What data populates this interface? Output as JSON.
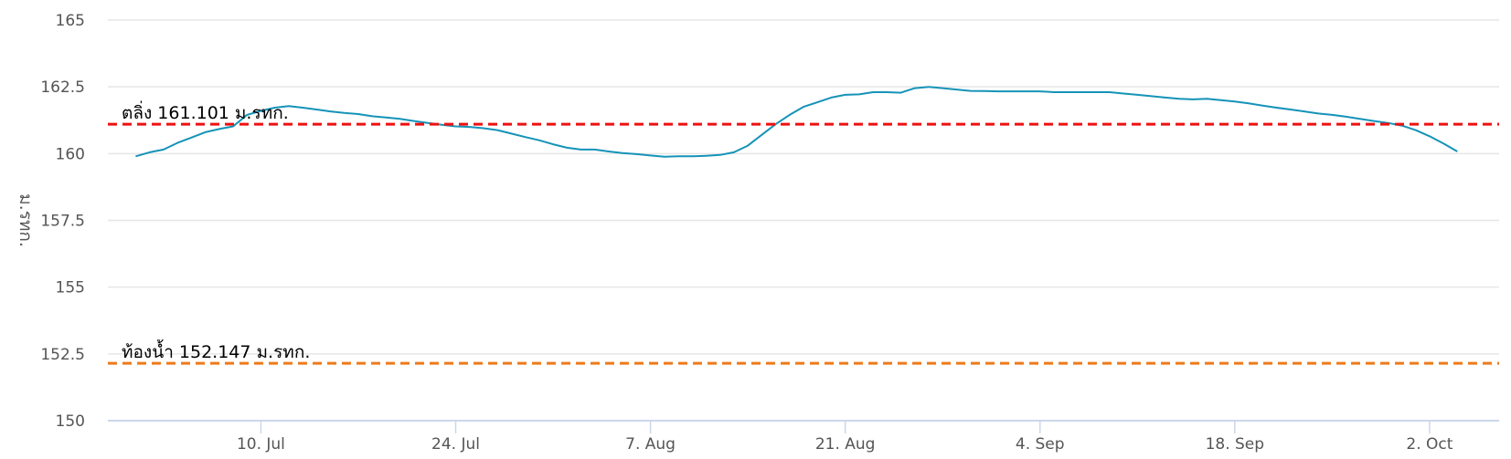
{
  "chart_data": {
    "type": "line",
    "title": "",
    "xlabel": "",
    "ylabel": "ม.รทก.",
    "ylim": [
      150,
      165
    ],
    "y_ticks": [
      "150",
      "152.5",
      "155",
      "157.5",
      "160",
      "162.5",
      "165"
    ],
    "y_tick_values": [
      150,
      152.5,
      155,
      157.5,
      160,
      162.5,
      165
    ],
    "x_range": [
      "2020-06-29",
      "2020-10-07"
    ],
    "x_ticks": [
      {
        "date": "2020-07-10",
        "label": "10. Jul"
      },
      {
        "date": "2020-07-24",
        "label": "24. Jul"
      },
      {
        "date": "2020-08-07",
        "label": "7. Aug"
      },
      {
        "date": "2020-08-21",
        "label": "21. Aug"
      },
      {
        "date": "2020-09-04",
        "label": "4. Sep"
      },
      {
        "date": "2020-09-18",
        "label": "18. Sep"
      },
      {
        "date": "2020-10-02",
        "label": "2. Oct"
      }
    ],
    "grid": true,
    "legend": "none",
    "reference_lines": [
      {
        "value": 161.101,
        "label": "ตลิ่ง 161.101 ม.รทก.",
        "color": "#ee1111",
        "style": "dashed"
      },
      {
        "value": 152.147,
        "label": "ท้องน้ำ 152.147 ม.รทก.",
        "color": "#ee7a1a",
        "style": "dashed"
      }
    ],
    "series": [
      {
        "color": "#1593b8",
        "points": [
          [
            "2020-07-01",
            159.9
          ],
          [
            "2020-07-02",
            160.05
          ],
          [
            "2020-07-03",
            160.15
          ],
          [
            "2020-07-04",
            160.4
          ],
          [
            "2020-07-05",
            160.6
          ],
          [
            "2020-07-06",
            160.8
          ],
          [
            "2020-07-07",
            160.92
          ],
          [
            "2020-07-08",
            161.02
          ],
          [
            "2020-07-09",
            161.45
          ],
          [
            "2020-07-10",
            161.6
          ],
          [
            "2020-07-11",
            161.72
          ],
          [
            "2020-07-12",
            161.78
          ],
          [
            "2020-07-13",
            161.72
          ],
          [
            "2020-07-14",
            161.65
          ],
          [
            "2020-07-15",
            161.58
          ],
          [
            "2020-07-16",
            161.52
          ],
          [
            "2020-07-17",
            161.48
          ],
          [
            "2020-07-18",
            161.4
          ],
          [
            "2020-07-19",
            161.35
          ],
          [
            "2020-07-20",
            161.3
          ],
          [
            "2020-07-21",
            161.22
          ],
          [
            "2020-07-22",
            161.15
          ],
          [
            "2020-07-23",
            161.08
          ],
          [
            "2020-07-24",
            161.02
          ],
          [
            "2020-07-25",
            161.0
          ],
          [
            "2020-07-26",
            160.95
          ],
          [
            "2020-07-27",
            160.88
          ],
          [
            "2020-07-28",
            160.75
          ],
          [
            "2020-07-29",
            160.62
          ],
          [
            "2020-07-30",
            160.5
          ],
          [
            "2020-07-31",
            160.35
          ],
          [
            "2020-08-01",
            160.22
          ],
          [
            "2020-08-02",
            160.15
          ],
          [
            "2020-08-03",
            160.15
          ],
          [
            "2020-08-04",
            160.08
          ],
          [
            "2020-08-05",
            160.02
          ],
          [
            "2020-08-06",
            159.98
          ],
          [
            "2020-08-07",
            159.93
          ],
          [
            "2020-08-08",
            159.88
          ],
          [
            "2020-08-09",
            159.9
          ],
          [
            "2020-08-10",
            159.9
          ],
          [
            "2020-08-11",
            159.92
          ],
          [
            "2020-08-12",
            159.95
          ],
          [
            "2020-08-13",
            160.05
          ],
          [
            "2020-08-14",
            160.3
          ],
          [
            "2020-08-15",
            160.7
          ],
          [
            "2020-08-16",
            161.1
          ],
          [
            "2020-08-17",
            161.45
          ],
          [
            "2020-08-18",
            161.75
          ],
          [
            "2020-08-19",
            161.92
          ],
          [
            "2020-08-20",
            162.1
          ],
          [
            "2020-08-21",
            162.2
          ],
          [
            "2020-08-22",
            162.22
          ],
          [
            "2020-08-23",
            162.3
          ],
          [
            "2020-08-24",
            162.3
          ],
          [
            "2020-08-25",
            162.28
          ],
          [
            "2020-08-26",
            162.45
          ],
          [
            "2020-08-27",
            162.5
          ],
          [
            "2020-08-28",
            162.45
          ],
          [
            "2020-08-29",
            162.4
          ],
          [
            "2020-08-30",
            162.35
          ],
          [
            "2020-08-31",
            162.34
          ],
          [
            "2020-09-01",
            162.33
          ],
          [
            "2020-09-02",
            162.33
          ],
          [
            "2020-09-03",
            162.33
          ],
          [
            "2020-09-04",
            162.33
          ],
          [
            "2020-09-05",
            162.3
          ],
          [
            "2020-09-06",
            162.3
          ],
          [
            "2020-09-07",
            162.3
          ],
          [
            "2020-09-08",
            162.3
          ],
          [
            "2020-09-09",
            162.3
          ],
          [
            "2020-09-10",
            162.25
          ],
          [
            "2020-09-11",
            162.2
          ],
          [
            "2020-09-12",
            162.15
          ],
          [
            "2020-09-13",
            162.1
          ],
          [
            "2020-09-14",
            162.05
          ],
          [
            "2020-09-15",
            162.03
          ],
          [
            "2020-09-16",
            162.05
          ],
          [
            "2020-09-17",
            162.0
          ],
          [
            "2020-09-18",
            161.95
          ],
          [
            "2020-09-19",
            161.88
          ],
          [
            "2020-09-20",
            161.8
          ],
          [
            "2020-09-21",
            161.72
          ],
          [
            "2020-09-22",
            161.65
          ],
          [
            "2020-09-23",
            161.58
          ],
          [
            "2020-09-24",
            161.5
          ],
          [
            "2020-09-25",
            161.45
          ],
          [
            "2020-09-26",
            161.38
          ],
          [
            "2020-09-27",
            161.3
          ],
          [
            "2020-09-28",
            161.22
          ],
          [
            "2020-09-29",
            161.15
          ],
          [
            "2020-09-30",
            161.05
          ],
          [
            "2020-10-01",
            160.88
          ],
          [
            "2020-10-02",
            160.65
          ],
          [
            "2020-10-03",
            160.38
          ],
          [
            "2020-10-04",
            160.08
          ]
        ]
      }
    ]
  }
}
